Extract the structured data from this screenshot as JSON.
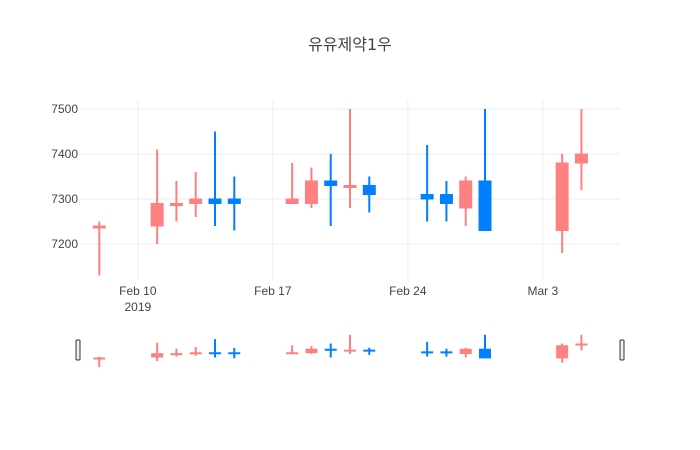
{
  "chart_data": {
    "type": "candlestick",
    "title": "유유제약1우",
    "xlabel": "",
    "ylabel": "",
    "x": [
      "2019-02-08",
      "2019-02-11",
      "2019-02-12",
      "2019-02-13",
      "2019-02-14",
      "2019-02-15",
      "2019-02-18",
      "2019-02-19",
      "2019-02-20",
      "2019-02-21",
      "2019-02-22",
      "2019-02-25",
      "2019-02-26",
      "2019-02-27",
      "2019-02-28",
      "2019-03-04",
      "2019-03-05"
    ],
    "series": [
      {
        "open": [
          7240,
          7240,
          7290,
          7290,
          7300,
          7300,
          7290,
          7290,
          7340,
          7330,
          7330,
          7310,
          7310,
          7280,
          7340,
          7230,
          7380
        ],
        "high": [
          7250,
          7410,
          7340,
          7360,
          7450,
          7350,
          7380,
          7370,
          7400,
          7500,
          7350,
          7420,
          7340,
          7350,
          7500,
          7400,
          7500
        ],
        "low": [
          7130,
          7200,
          7250,
          7260,
          7240,
          7230,
          7290,
          7280,
          7240,
          7280,
          7270,
          7250,
          7250,
          7240,
          7230,
          7180,
          7320
        ],
        "close": [
          7240,
          7290,
          7290,
          7300,
          7290,
          7290,
          7300,
          7340,
          7330,
          7330,
          7310,
          7300,
          7290,
          7340,
          7230,
          7380,
          7400
        ]
      }
    ],
    "ylim": [
      7120,
      7520
    ],
    "y_ticks": [
      7200,
      7300,
      7400,
      7500
    ],
    "x_ticks": [
      {
        "date": "2019-02-10",
        "label": "Feb 10",
        "sublabel": "2019"
      },
      {
        "date": "2019-02-17",
        "label": "Feb 17",
        "sublabel": ""
      },
      {
        "date": "2019-02-24",
        "label": "Feb 24",
        "sublabel": ""
      },
      {
        "date": "2019-03-03",
        "label": "Mar 3",
        "sublabel": ""
      }
    ],
    "x_range": [
      "2019-02-07",
      "2019-03-07"
    ],
    "colors": {
      "increasing": "#ff8080",
      "decreasing": "#0080ff"
    },
    "grid": true,
    "rangeslider": true
  }
}
